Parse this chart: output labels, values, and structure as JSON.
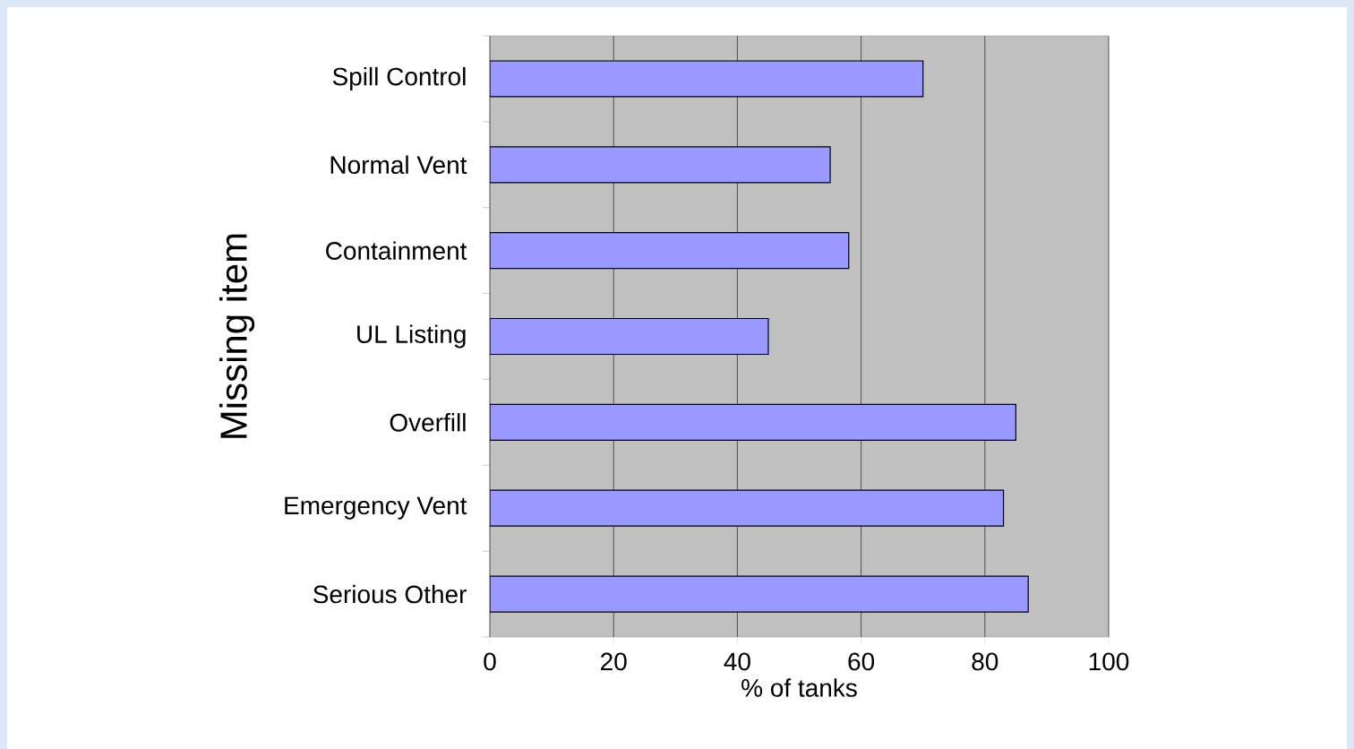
{
  "chart_data": {
    "type": "bar",
    "orientation": "horizontal",
    "categories": [
      "Spill Control",
      "Normal Vent",
      "Containment",
      "UL Listing",
      "Overfill",
      "Emergency Vent",
      "Serious Other"
    ],
    "values": [
      70,
      55,
      58,
      45,
      85,
      83,
      87
    ],
    "color": "#9999ff",
    "xlim": [
      0,
      100
    ],
    "xticks": [
      0,
      20,
      40,
      60,
      80,
      100
    ],
    "xlabel": "% of tanks",
    "ylabel": "Missing item",
    "grid": "x"
  }
}
